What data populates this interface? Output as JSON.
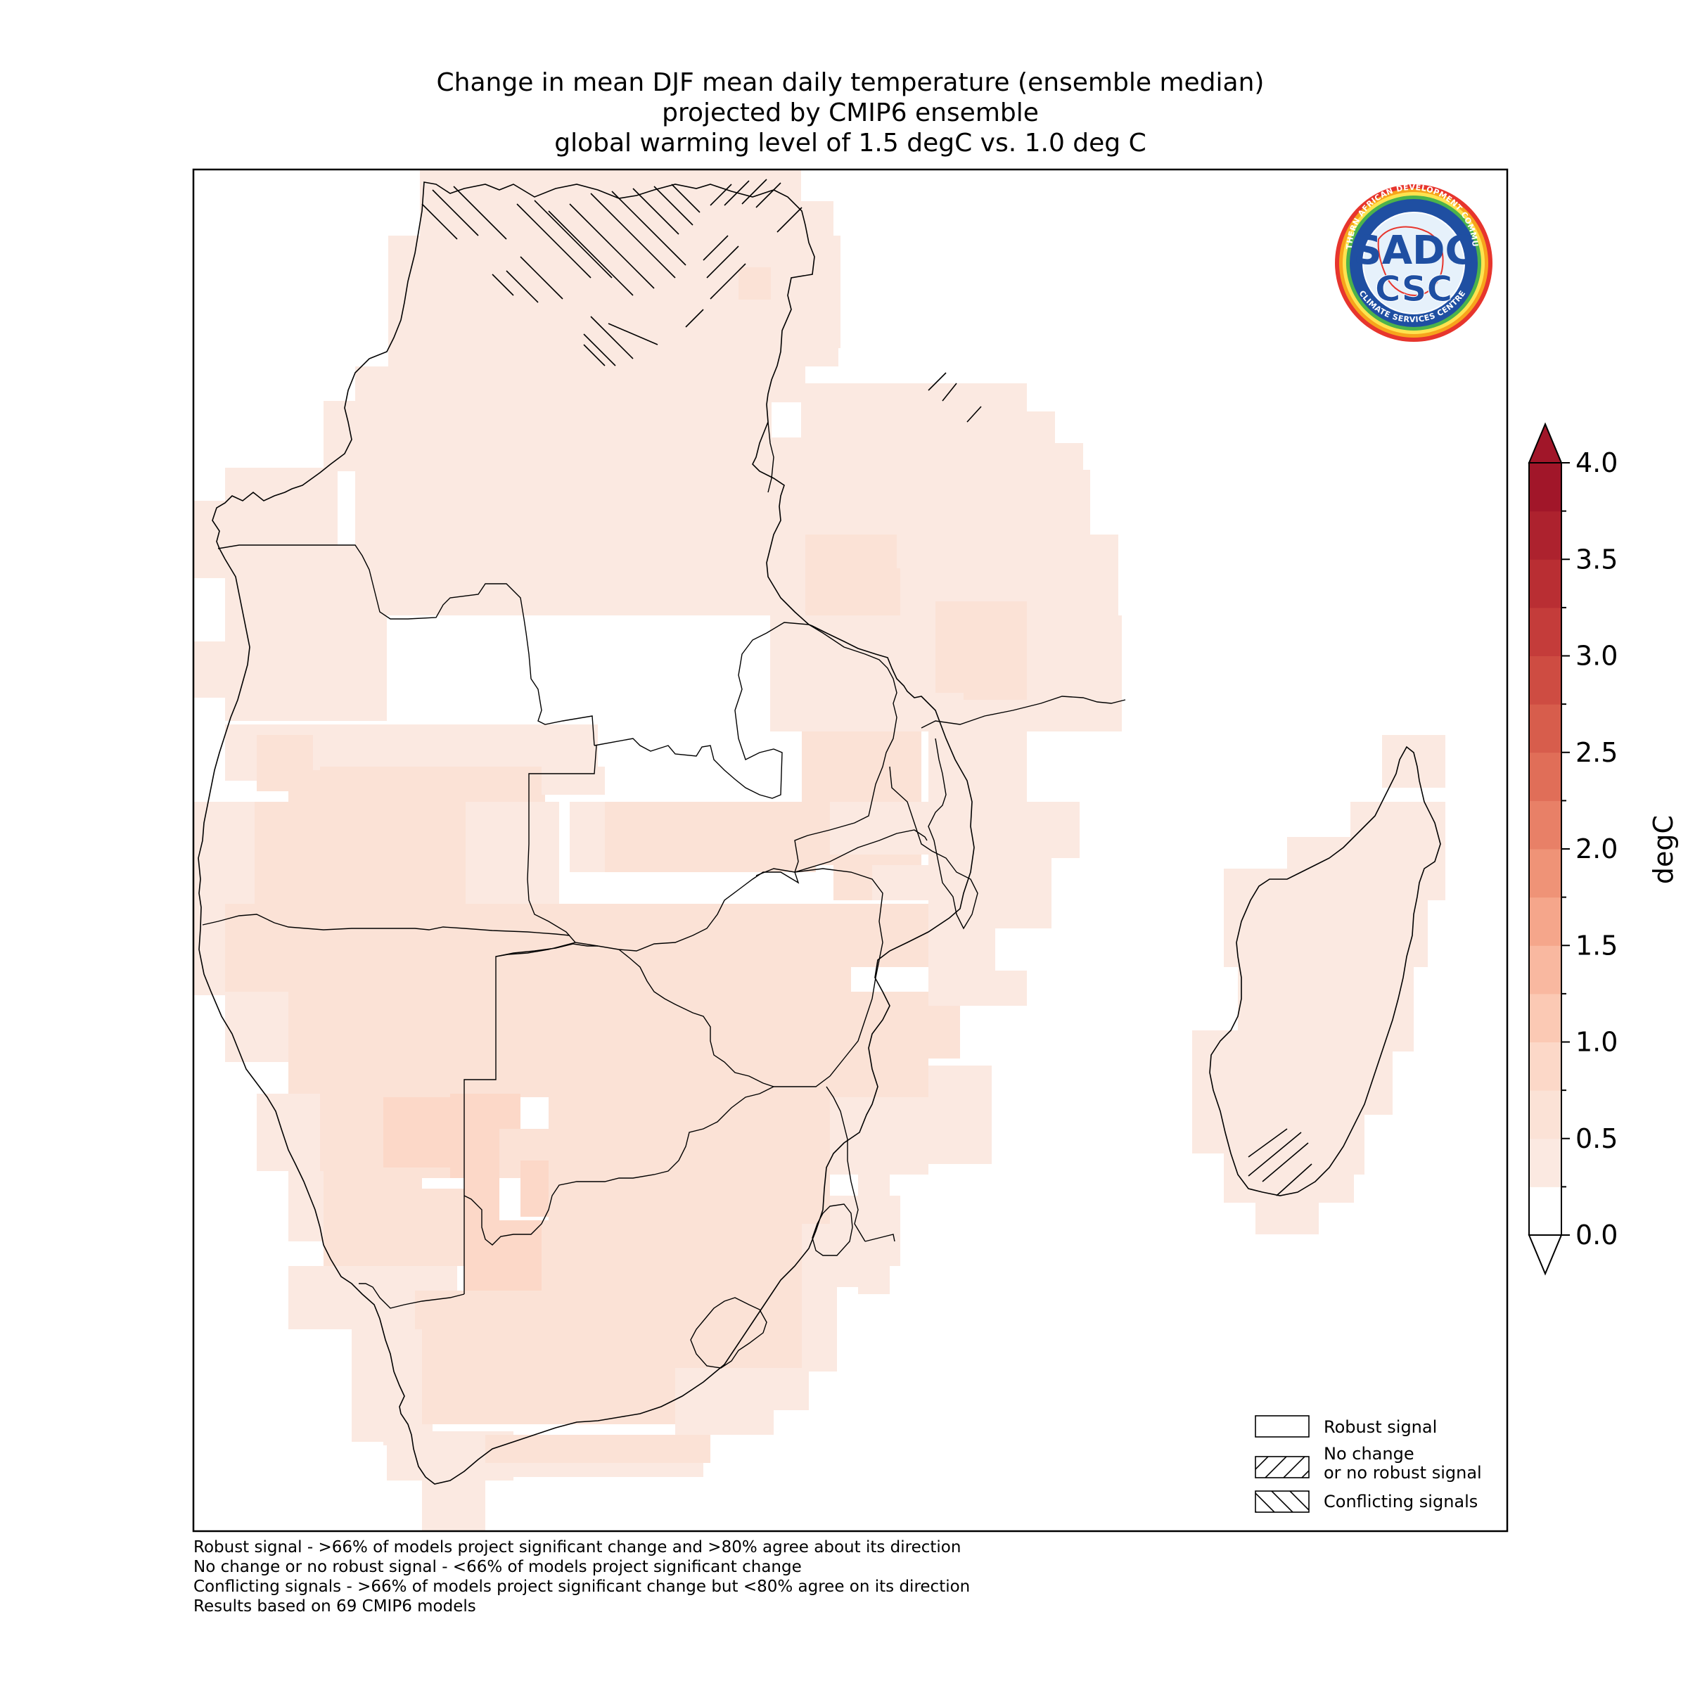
{
  "title": {
    "line1": "Change in mean DJF mean daily temperature (ensemble median)",
    "line2": "projected by CMIP6 ensemble",
    "line3": "global warming level of 1.5 degC vs. 1.0 deg C"
  },
  "colorbar": {
    "unit": "degC",
    "min": 0.0,
    "max": 4.0,
    "step": 0.25,
    "tick_labels": [
      "0.0",
      "0.5",
      "1.0",
      "1.5",
      "2.0",
      "2.5",
      "3.0",
      "3.5",
      "4.0"
    ],
    "colors": [
      "#ffffff",
      "#fbe9e1",
      "#fbe2d6",
      "#fcd8c8",
      "#fbc9b4",
      "#f9b8a0",
      "#f5a68b",
      "#ef9377",
      "#e88067",
      "#e06e58",
      "#d75d4c",
      "#ce4c42",
      "#c43c3a",
      "#b92e33",
      "#ad222e",
      "#a11629"
    ],
    "extend_low_color": "#ffffff",
    "extend_high_color": "#a11629"
  },
  "legend": {
    "robust": "Robust signal",
    "no_change_line1": "No change",
    "no_change_line2": "or no robust signal",
    "conflicting": "Conflicting signals"
  },
  "footnotes": {
    "line1": "Robust signal - >66% of models project significant change and >80% agree about its direction",
    "line2": "No change or no robust signal - <66% of models project significant change",
    "line3": "Conflicting signals - >66% of models project significant change but <80% agree on its direction",
    "line4": "Results based on 69 CMIP6 models"
  },
  "logo": {
    "text_top": "SADC",
    "text_bottom": "CSC",
    "ring_top": "SOUTHERN AFRICAN DEVELOPMENT COMMUNITY",
    "ring_bottom": "CLIMATE SERVICES CENTRE"
  },
  "map_colors": {
    "light": "#fbe9e1",
    "medium": "#fbe2d6",
    "dark": "#fcd8c8"
  }
}
